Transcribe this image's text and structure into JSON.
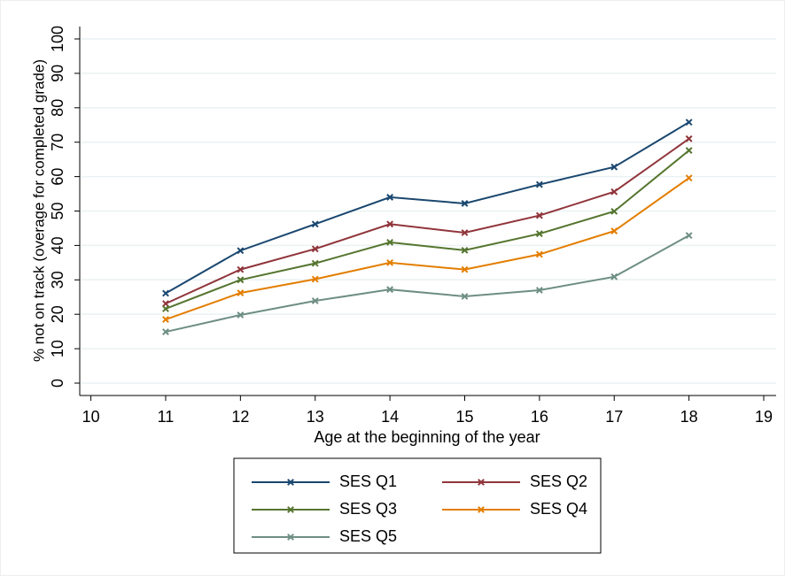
{
  "chart_data": {
    "type": "line",
    "x_label": "Age at the beginning of the year",
    "y_label": "% not on track (overage for completed grade)",
    "x": [
      11,
      12,
      13,
      14,
      15,
      16,
      17,
      18
    ],
    "series": [
      {
        "name": "SES Q1",
        "color": "#1a476f",
        "values": [
          26.1,
          38.5,
          46.2,
          54,
          52.2,
          57.7,
          62.8,
          75.8
        ]
      },
      {
        "name": "SES Q2",
        "color": "#90353b",
        "values": [
          23.1,
          33,
          39,
          46.2,
          43.7,
          48.7,
          55.6,
          71
        ]
      },
      {
        "name": "SES Q3",
        "color": "#55752f",
        "values": [
          21.6,
          30,
          34.8,
          40.9,
          38.6,
          43.4,
          49.9,
          67.6
        ]
      },
      {
        "name": "SES Q4",
        "color": "#e37e00",
        "values": [
          18.5,
          26.2,
          30.2,
          35,
          33,
          37.4,
          44.2,
          59.6
        ]
      },
      {
        "name": "SES Q5",
        "color": "#6e8e84",
        "values": [
          14.9,
          19.8,
          23.9,
          27.2,
          25.2,
          27,
          30.9,
          42.9
        ]
      }
    ],
    "xlim": [
      10,
      19
    ],
    "xticks": [
      10,
      11,
      12,
      13,
      14,
      15,
      16,
      17,
      18,
      19
    ],
    "ylim": [
      0,
      100
    ],
    "yticks": [
      0,
      10,
      20,
      30,
      40,
      50,
      60,
      70,
      80,
      90,
      100
    ],
    "grid": true
  }
}
